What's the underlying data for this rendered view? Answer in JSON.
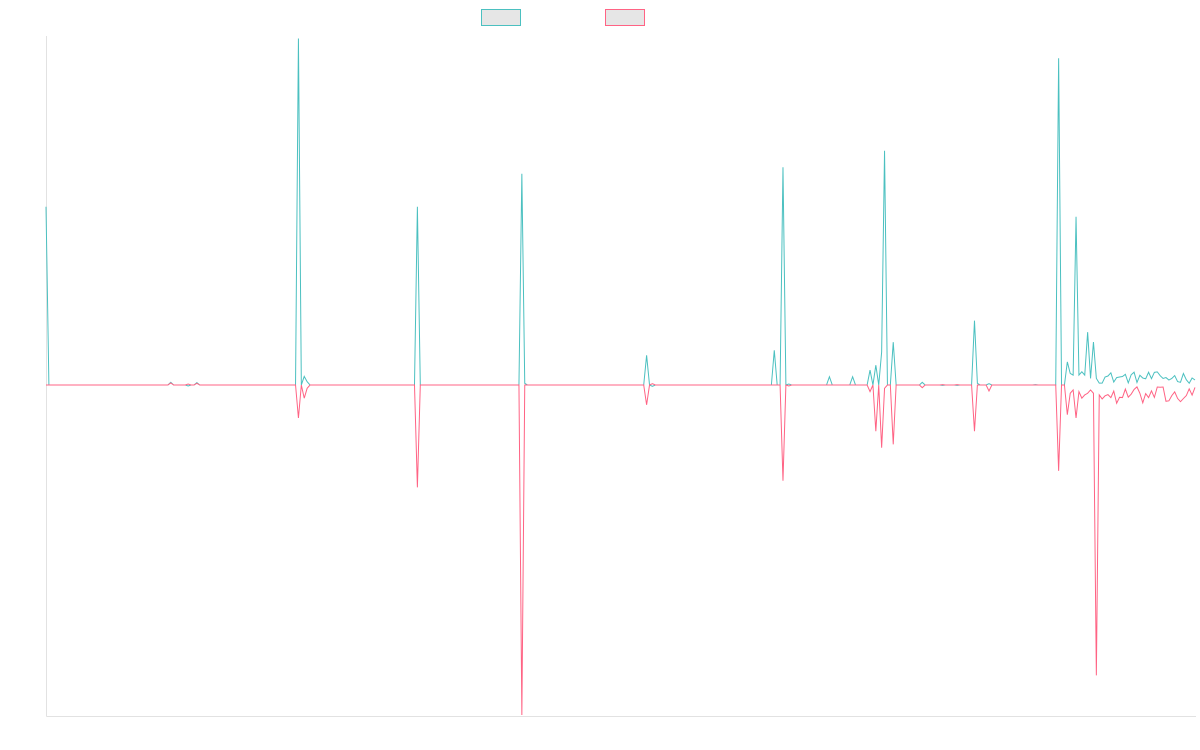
{
  "chart_data": {
    "type": "line",
    "title": "",
    "xlabel": "",
    "ylabel": "",
    "grid": false,
    "legend_position": "top-center",
    "n_points": 397,
    "ylim": [
      -100,
      100
    ],
    "baseline": 0,
    "series": [
      {
        "color": "#4bc0c0",
        "fill": "#e6e6e6",
        "base": 0,
        "tail_noise": {
          "start": 355,
          "end": 396,
          "min": 0.5,
          "max": 4.0
        },
        "points": [
          [
            0,
            54
          ],
          [
            1,
            0
          ],
          [
            42,
            0
          ],
          [
            43,
            0.8
          ],
          [
            44,
            0
          ],
          [
            48,
            0
          ],
          [
            49,
            -0.3
          ],
          [
            50,
            0
          ],
          [
            51,
            0
          ],
          [
            52,
            0.7
          ],
          [
            53,
            0
          ],
          [
            86,
            0
          ],
          [
            87,
            105
          ],
          [
            88,
            0
          ],
          [
            89,
            2.6
          ],
          [
            90,
            1
          ],
          [
            91,
            0
          ],
          [
            127,
            0
          ],
          [
            128,
            54
          ],
          [
            129,
            0
          ],
          [
            163,
            0
          ],
          [
            164,
            64
          ],
          [
            165,
            0.5
          ],
          [
            166,
            0
          ],
          [
            206,
            0
          ],
          [
            207,
            9
          ],
          [
            208,
            0
          ],
          [
            209,
            -0.4
          ],
          [
            210,
            0
          ],
          [
            250,
            0
          ],
          [
            251,
            10.5
          ],
          [
            252,
            0
          ],
          [
            253,
            0
          ],
          [
            254,
            66
          ],
          [
            255,
            0
          ],
          [
            256,
            0.3
          ],
          [
            257,
            0
          ],
          [
            269,
            0
          ],
          [
            270,
            2.5
          ],
          [
            271,
            0
          ],
          [
            277,
            0
          ],
          [
            278,
            2.5
          ],
          [
            279,
            0
          ],
          [
            283,
            0
          ],
          [
            284,
            4.5
          ],
          [
            285,
            0
          ],
          [
            286,
            6
          ],
          [
            287,
            0
          ],
          [
            288,
            10
          ],
          [
            289,
            71
          ],
          [
            290,
            0
          ],
          [
            291,
            0
          ],
          [
            292,
            13
          ],
          [
            293,
            0
          ],
          [
            294,
            0
          ],
          [
            301,
            0
          ],
          [
            302,
            0.8
          ],
          [
            303,
            0
          ],
          [
            308,
            0
          ],
          [
            309,
            -0.1
          ],
          [
            310,
            0
          ],
          [
            313,
            0
          ],
          [
            314,
            -0.1
          ],
          [
            315,
            0
          ],
          [
            319,
            0
          ],
          [
            320,
            19.5
          ],
          [
            321,
            0.5
          ],
          [
            322,
            0
          ],
          [
            324,
            0
          ],
          [
            325,
            0.4
          ],
          [
            326,
            0
          ],
          [
            340,
            0
          ],
          [
            341,
            0.1
          ],
          [
            342,
            0
          ],
          [
            348,
            0
          ],
          [
            349,
            99
          ],
          [
            350,
            0
          ],
          [
            351,
            0
          ],
          [
            352,
            7
          ],
          [
            353,
            3.5
          ],
          [
            354,
            3
          ],
          [
            355,
            51
          ],
          [
            356,
            3
          ],
          [
            357,
            4
          ],
          [
            358,
            3
          ],
          [
            359,
            16
          ],
          [
            360,
            2
          ],
          [
            361,
            13
          ],
          [
            362,
            2
          ]
        ]
      },
      {
        "color": "#ff6384",
        "fill": "#e6e6e6",
        "base": 0,
        "tail_noise": {
          "start": 362,
          "end": 396,
          "min": -6.0,
          "max": -0.5
        },
        "points": [
          [
            0,
            0
          ],
          [
            1,
            0
          ],
          [
            42,
            0
          ],
          [
            43,
            0.6
          ],
          [
            44,
            0
          ],
          [
            48,
            0
          ],
          [
            49,
            0.3
          ],
          [
            50,
            0
          ],
          [
            51,
            0
          ],
          [
            52,
            0.5
          ],
          [
            53,
            0
          ],
          [
            86,
            0
          ],
          [
            87,
            -10
          ],
          [
            88,
            0
          ],
          [
            89,
            -4
          ],
          [
            90,
            -1
          ],
          [
            91,
            0
          ],
          [
            127,
            0
          ],
          [
            128,
            -31
          ],
          [
            129,
            0
          ],
          [
            163,
            0
          ],
          [
            164,
            -100
          ],
          [
            165,
            0
          ],
          [
            206,
            0
          ],
          [
            207,
            -6
          ],
          [
            208,
            0
          ],
          [
            209,
            0.4
          ],
          [
            210,
            0
          ],
          [
            250,
            0
          ],
          [
            251,
            0
          ],
          [
            252,
            0
          ],
          [
            253,
            0
          ],
          [
            254,
            -29
          ],
          [
            255,
            0
          ],
          [
            256,
            -0.3
          ],
          [
            257,
            0
          ],
          [
            283,
            0
          ],
          [
            284,
            -2
          ],
          [
            285,
            0
          ],
          [
            286,
            -14
          ],
          [
            287,
            0
          ],
          [
            288,
            -19
          ],
          [
            289,
            -1
          ],
          [
            290,
            0
          ],
          [
            291,
            0
          ],
          [
            292,
            -18
          ],
          [
            293,
            0
          ],
          [
            294,
            0
          ],
          [
            301,
            0
          ],
          [
            302,
            -0.8
          ],
          [
            303,
            0
          ],
          [
            308,
            0
          ],
          [
            309,
            0.1
          ],
          [
            310,
            0
          ],
          [
            313,
            0
          ],
          [
            314,
            0.1
          ],
          [
            315,
            0
          ],
          [
            319,
            0
          ],
          [
            320,
            -14
          ],
          [
            321,
            0
          ],
          [
            322,
            0
          ],
          [
            324,
            0
          ],
          [
            325,
            -1.8
          ],
          [
            326,
            0
          ],
          [
            348,
            0
          ],
          [
            349,
            -26
          ],
          [
            350,
            0
          ],
          [
            351,
            0
          ],
          [
            352,
            -9
          ],
          [
            353,
            -2.5
          ],
          [
            354,
            -1.5
          ],
          [
            355,
            -10
          ],
          [
            356,
            -2
          ],
          [
            357,
            -4
          ],
          [
            358,
            -3
          ],
          [
            359,
            -2.5
          ],
          [
            360,
            -1.5
          ],
          [
            361,
            -2.5
          ],
          [
            362,
            -88
          ],
          [
            363,
            -3
          ]
        ]
      }
    ]
  }
}
